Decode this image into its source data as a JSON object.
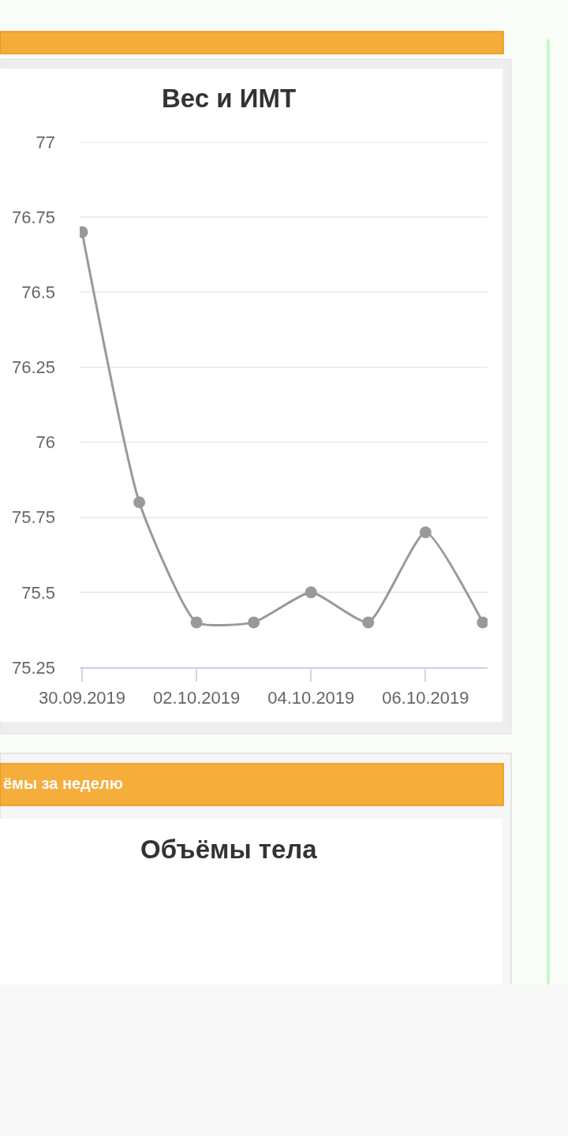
{
  "chart_data": [
    {
      "type": "line",
      "title": "Вес и ИМТ",
      "x": [
        "2019-09-30",
        "2019-10-01",
        "2019-10-02",
        "2019-10-03",
        "2019-10-04",
        "2019-10-05",
        "2019-10-06",
        "2019-10-07"
      ],
      "series": [
        {
          "color": "#999999",
          "values": [
            76.7,
            75.8,
            75.4,
            75.4,
            75.5,
            75.4,
            75.7,
            75.4
          ]
        }
      ],
      "xlim": [
        "2019-09-29T23:00",
        "2019-10-07T02:00"
      ],
      "xticks": [
        {
          "value": "2019-09-30",
          "label": "30.09.2019"
        },
        {
          "value": "2019-10-02",
          "label": "02.10.2019"
        },
        {
          "value": "2019-10-04",
          "label": "04.10.2019"
        },
        {
          "value": "2019-10-06",
          "label": "06.10.2019"
        }
      ],
      "ylim": [
        75.25,
        77
      ],
      "yticks": [
        75.25,
        75.5,
        75.75,
        76,
        76.25,
        76.5,
        76.75,
        77
      ],
      "grid": "y",
      "marker": "circle",
      "line_style": "solid"
    },
    {
      "type": "other",
      "title": "Объёмы тела",
      "annotations": [
        "ёмы за неделю"
      ]
    }
  ]
}
